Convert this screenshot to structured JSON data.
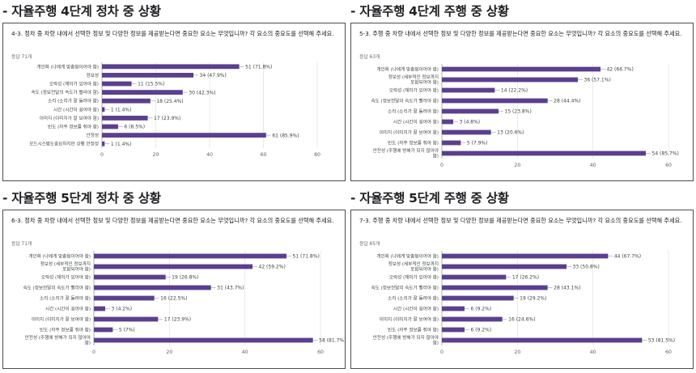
{
  "panels": [
    {
      "section_title": "- 자율주행 4단계 정차 중 상황",
      "question": "4-3. 정차 중 차량 내에서 선택한 정보 및 다양한 정보를 제공받는다면 중요한 요소는 무엇입니까? 각 요소의 중요도를 선택해 주세요.",
      "responses": "응답 71개",
      "chart_data": {
        "type": "bar",
        "orientation": "horizontal",
        "categories": [
          [
            "개인화 (나에게 맞춤형이어야 함)"
          ],
          [
            "정보성"
          ],
          [
            "오락성 (재미가 있어야 함)"
          ],
          [
            "속도 (정보전달의 속도가 빨라야 함)"
          ],
          [
            "소리 (소리가 잘 들려야 함)"
          ],
          [
            "시간 (시간이 길어야 함)"
          ],
          [
            "이미지 (이미지가 잘 보여야 함)"
          ],
          [
            "빈도 (자주 정보를 줘야 함)"
          ],
          [
            "안정성"
          ],
          [
            "모드시스템도중요하지만 상황 안정성"
          ]
        ],
        "values": [
          51,
          34,
          11,
          30,
          18,
          1,
          17,
          6,
          61,
          1
        ],
        "labels": [
          "51 (71.8%)",
          "34 (47.9%)",
          "11 (15.5%)",
          "30 (42.3%)",
          "18 (25.4%)",
          "1 (1.4%)",
          "17 (23.9%)",
          "6 (8.5%)",
          "61 (85.9%)",
          "1 (1.4%)"
        ],
        "xlim": [
          0,
          80
        ],
        "xticks": [
          "0",
          "20",
          "40",
          "60",
          "80"
        ],
        "color": "#5b3f8f"
      }
    },
    {
      "section_title": "- 자율주행 4단계 주행 중 상황",
      "question": "5-3. 주행 중 차량 내에서 선택한 정보 및 다양한 정보를 제공받는다면 중요한 요소는 무엇입니까? 각 요소의 중요도를 선택해 주세요.",
      "responses": "응답 63개",
      "chart_data": {
        "type": "bar",
        "orientation": "horizontal",
        "categories": [
          [
            "개인화 (나에게 맞춤형이어야 함)"
          ],
          [
            "정보성 (세부적인 정보까지",
            "포함되어야 함)"
          ],
          [
            "오락성 (재미가 있어야 함)"
          ],
          [
            "속도 (정보전달의 속도가 빨라야 함)"
          ],
          [
            "소리 (소리가 잘 들려야 함)"
          ],
          [
            "시간 (시간이 길어야 함)"
          ],
          [
            "이미지 (이미지가 잘 보여야 함)"
          ],
          [
            "빈도 (자주 정보를 줘야 함)"
          ],
          [
            "안전성 (주행에 방해가 되지 않아야",
            "함)"
          ]
        ],
        "values": [
          42,
          36,
          14,
          28,
          15,
          3,
          13,
          5,
          54
        ],
        "labels": [
          "42 (66.7%)",
          "36 (57.1%)",
          "14 (22.2%)",
          "28 (44.4%)",
          "15 (23.8%)",
          "3 (4.8%)",
          "13 (20.6%)",
          "5 (7.9%)",
          "54 (85.7%)"
        ],
        "xlim": [
          0,
          60
        ],
        "xticks": [
          "0",
          "20",
          "40",
          "60"
        ],
        "color": "#5b3f8f"
      }
    },
    {
      "section_title": "- 자율주행 5단계 정차 중 상황",
      "question": "6-3. 정차 중 차량 내에서 선택한 정보 및 다양한 정보를 제공받는다면 중요한 요소는 무엇입니까? 각 요소의 중요도를 선택해 주세요.",
      "responses": "응답 71개",
      "chart_data": {
        "type": "bar",
        "orientation": "horizontal",
        "categories": [
          [
            "개인화 (나에게 맞춤형이어야 함)"
          ],
          [
            "정보성 (세부적인 정보까지",
            "포함되어야 함)"
          ],
          [
            "오락성 (재미가 있어야 함)"
          ],
          [
            "속도 (정보전달의 속도가 빨라야 함)"
          ],
          [
            "소리 (소리가 잘 들려야 함)"
          ],
          [
            "시간 (시간이 길어야 함)"
          ],
          [
            "이미지 (이미지가 잘 보여야 함)"
          ],
          [
            "빈도 (자주 정보를 줘야 함)"
          ],
          [
            "안전성 (주행에 방해가 되지 않아야",
            "함)"
          ]
        ],
        "values": [
          51,
          42,
          19,
          31,
          16,
          3,
          17,
          5,
          58
        ],
        "labels": [
          "51 (71.8%)",
          "42 (59.2%)",
          "19 (26.8%)",
          "31 (43.7%)",
          "16 (22.5%)",
          "3 (4.2%)",
          "17 (23.9%)",
          "5 (7%)",
          "58 (81.7%)"
        ],
        "xlim": [
          0,
          60
        ],
        "xticks": [
          "0",
          "20",
          "40",
          "60"
        ],
        "color": "#5b3f8f"
      }
    },
    {
      "section_title": "- 자율주행 5단계 주행 중 상황",
      "question": "7-3. 주행 중 차량 내에서 선택한 정보 및 다양한 정보를 제공받는다면 중요한 요소는 무엇입니까? 각 요소의 중요도를 선택해 주세요.",
      "responses": "응답 65개",
      "chart_data": {
        "type": "bar",
        "orientation": "horizontal",
        "categories": [
          [
            "개인화 (나에게 맞춤형이어야 함)"
          ],
          [
            "정보성 (세부적인 정보까지",
            "포함되어야 함)"
          ],
          [
            "오락성 (재미가 있어야 함)"
          ],
          [
            "속도 (정보전달의 속도가 빨라야 함)"
          ],
          [
            "소리 (소리가 잘 들려야 함)"
          ],
          [
            "시간 (시간이 길어야 함)"
          ],
          [
            "이미지 (이미지가 잘 보여야 함)"
          ],
          [
            "빈도 (자주 정보를 줘야 함)"
          ],
          [
            "안전성 (주행에 방해가 되지 않아야",
            "함)"
          ]
        ],
        "values": [
          44,
          33,
          17,
          28,
          19,
          6,
          16,
          6,
          53
        ],
        "labels": [
          "44 (67.7%)",
          "33 (50.8%)",
          "17 (26.2%)",
          "28 (43.1%)",
          "19 (29.2%)",
          "6 (9.2%)",
          "16 (24.6%)",
          "6 (9.2%)",
          "53 (81.5%)"
        ],
        "xlim": [
          0,
          60
        ],
        "xticks": [
          "0",
          "20",
          "40",
          "60"
        ],
        "color": "#5b3f8f"
      }
    }
  ]
}
